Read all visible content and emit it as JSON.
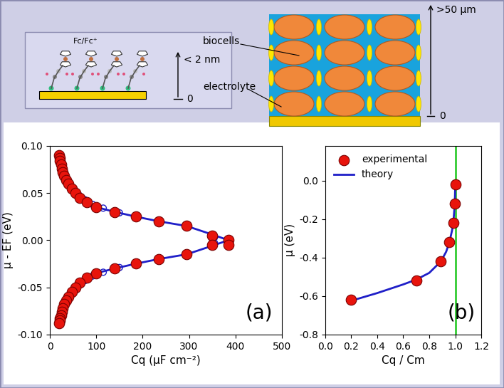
{
  "chart_data": [
    {
      "type": "scatter",
      "xlabel": "Cq (μF cm⁻²)",
      "ylabel": "μ - EF (eV)",
      "xlim": [
        0,
        500
      ],
      "xticks": [
        0,
        100,
        200,
        300,
        400,
        500
      ],
      "ylim": [
        -0.1,
        0.1
      ],
      "yticks": [
        {
          "value": -0.1,
          "label": "-0.10"
        },
        {
          "value": -0.05,
          "label": "-0.05"
        },
        {
          "value": 0.0,
          "label": "0.00"
        },
        {
          "value": 0.05,
          "label": "0.05"
        },
        {
          "value": 0.1,
          "label": "0.10"
        }
      ],
      "annotations": [
        {
          "text": "(a)"
        }
      ],
      "series": [
        {
          "type": "line",
          "color": "#1f1fc8",
          "x": [
            18,
            22,
            28,
            36,
            48,
            62,
            80,
            100,
            140,
            185,
            235,
            295,
            350,
            385,
            350,
            295,
            235,
            185,
            140,
            100,
            80,
            62,
            48,
            36,
            28,
            22,
            18
          ],
          "values": [
            0.09,
            0.08,
            0.07,
            0.06,
            0.05,
            0.043,
            0.039,
            0.035,
            0.03,
            0.025,
            0.02,
            0.015,
            0.006,
            0.0,
            -0.006,
            -0.015,
            -0.02,
            -0.025,
            -0.03,
            -0.035,
            -0.039,
            -0.043,
            -0.05,
            -0.06,
            -0.07,
            -0.08,
            -0.088
          ]
        },
        {
          "type": "scatter",
          "marker": "open_circle",
          "color": "#1f1fc8",
          "x": [
            22,
            24,
            26,
            29,
            33,
            38,
            44,
            52,
            62,
            75,
            92,
            115,
            150,
            355,
            355,
            150,
            115,
            92,
            75,
            62,
            52,
            44,
            38,
            33,
            29,
            26,
            24,
            22
          ],
          "values": [
            0.088,
            0.083,
            0.078,
            0.073,
            0.068,
            0.063,
            0.058,
            0.053,
            0.048,
            0.043,
            0.038,
            0.034,
            0.029,
            0.003,
            -0.003,
            -0.029,
            -0.034,
            -0.038,
            -0.043,
            -0.048,
            -0.053,
            -0.058,
            -0.063,
            -0.068,
            -0.073,
            -0.078,
            -0.083,
            -0.088
          ]
        },
        {
          "type": "scatter",
          "marker": "circle",
          "color": "#e8140c",
          "x": [
            20,
            21,
            22,
            24,
            26,
            28,
            31,
            35,
            40,
            47,
            55,
            65,
            80,
            100,
            140,
            185,
            235,
            295,
            350,
            385,
            385,
            350,
            295,
            235,
            185,
            140,
            100,
            80,
            65,
            55,
            47,
            40,
            35,
            31,
            28,
            26,
            24,
            22,
            21,
            20
          ],
          "values": [
            0.09,
            0.087,
            0.084,
            0.08,
            0.076,
            0.072,
            0.068,
            0.064,
            0.06,
            0.055,
            0.05,
            0.045,
            0.04,
            0.035,
            0.03,
            0.025,
            0.02,
            0.015,
            0.005,
            0.0,
            -0.005,
            -0.005,
            -0.015,
            -0.02,
            -0.025,
            -0.03,
            -0.035,
            -0.04,
            -0.045,
            -0.05,
            -0.055,
            -0.06,
            -0.064,
            -0.068,
            -0.072,
            -0.076,
            -0.08,
            -0.083,
            -0.085,
            -0.088
          ]
        }
      ]
    },
    {
      "type": "scatter",
      "xlabel": "Cq / Cm",
      "ylabel": "μ (eV)",
      "xlim": [
        0,
        1.2
      ],
      "xticks": [
        {
          "value": 0,
          "label": "0.0"
        },
        0.2,
        0.4,
        0.6,
        0.8,
        {
          "value": 1,
          "label": "1.0"
        },
        1.2
      ],
      "ylim": [
        -0.8,
        0.18
      ],
      "yticks": [
        -0.8,
        -0.6,
        -0.4,
        -0.2,
        {
          "value": 0,
          "label": "0.0"
        }
      ],
      "legend": "upper left",
      "annotations": [
        {
          "text": "(b)"
        }
      ],
      "series": [
        {
          "name": "experimental",
          "type": "scatter",
          "marker": "circle",
          "color": "#e8140c",
          "x": [
            0.2,
            0.7,
            0.89,
            0.955,
            0.985,
            0.995,
            1.0
          ],
          "values": [
            -0.62,
            -0.52,
            -0.42,
            -0.32,
            -0.22,
            -0.12,
            -0.02
          ]
        },
        {
          "name": "theory",
          "type": "line",
          "color": "#1f1fc8",
          "x": [
            0.2,
            0.4,
            0.6,
            0.7,
            0.8,
            0.89,
            0.93,
            0.955,
            0.975,
            0.985,
            0.993,
            0.998,
            1.0
          ],
          "values": [
            -0.625,
            -0.585,
            -0.54,
            -0.515,
            -0.48,
            -0.42,
            -0.37,
            -0.32,
            -0.26,
            -0.22,
            -0.15,
            -0.08,
            -0.01
          ]
        },
        {
          "type": "vline",
          "color": "#33cc33",
          "x": [
            1.0
          ]
        }
      ]
    }
  ],
  "schematics": {
    "monolayer": {
      "label": "Fc/Fc⁺",
      "thickness": "< 2 nm",
      "origin": "0"
    },
    "tissue": {
      "labels": [
        "biocells",
        "electrolyte"
      ],
      "thickness": ">50 μm",
      "origin": "0"
    }
  }
}
